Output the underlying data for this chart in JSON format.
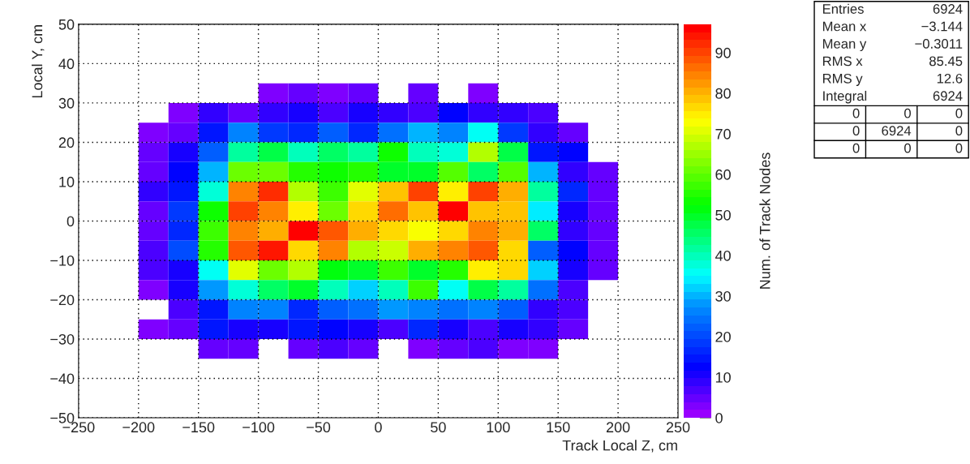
{
  "chart_data": {
    "type": "heatmap",
    "xlabel": "Track Local Z, cm",
    "ylabel": "Local Y, cm",
    "clabel": "Num. of Track Nodes",
    "x": [
      -187.5,
      -162.5,
      -137.5,
      -112.5,
      -87.5,
      -62.5,
      -37.5,
      -12.5,
      12.5,
      37.5,
      62.5,
      87.5,
      112.5,
      137.5,
      162.5,
      187.5
    ],
    "y": [
      32.5,
      27.5,
      22.5,
      17.5,
      12.5,
      7.5,
      2.5,
      -2.5,
      -7.5,
      -12.5,
      -17.5,
      -22.5,
      -27.5,
      -32.5
    ],
    "cells": [
      [
        null,
        null,
        null,
        null,
        2,
        4,
        2,
        4,
        null,
        4,
        null,
        2,
        null,
        null,
        null,
        null
      ],
      [
        null,
        2,
        8,
        5,
        9,
        11,
        6,
        11,
        8,
        6,
        12,
        9,
        8,
        6,
        null,
        null
      ],
      [
        2,
        5,
        14,
        26,
        18,
        16,
        22,
        16,
        24,
        31,
        26,
        35,
        18,
        9,
        5,
        null
      ],
      [
        5,
        10,
        22,
        42,
        47,
        40,
        45,
        42,
        53,
        39,
        38,
        67,
        48,
        15,
        12,
        null
      ],
      [
        5,
        12,
        31,
        62,
        61,
        55,
        53,
        55,
        50,
        49,
        60,
        45,
        60,
        31,
        8,
        4
      ],
      [
        8,
        15,
        38,
        84,
        92,
        67,
        57,
        71,
        79,
        91,
        74,
        90,
        81,
        41,
        16,
        4
      ],
      [
        5,
        18,
        53,
        90,
        84,
        74,
        62,
        76,
        86,
        79,
        97,
        79,
        79,
        33,
        10,
        4
      ],
      [
        5,
        16,
        58,
        84,
        81,
        97,
        88,
        81,
        77,
        72,
        77,
        84,
        81,
        45,
        8,
        4
      ],
      [
        7,
        21,
        55,
        88,
        95,
        76,
        84,
        67,
        69,
        80,
        84,
        88,
        76,
        22,
        12,
        4
      ],
      [
        6,
        11,
        35,
        71,
        62,
        67,
        51,
        49,
        58,
        49,
        55,
        74,
        76,
        32,
        11,
        4
      ],
      [
        3,
        11,
        29,
        37,
        45,
        49,
        39,
        32,
        40,
        58,
        35,
        48,
        41,
        24,
        7,
        null
      ],
      [
        null,
        7,
        14,
        27,
        27,
        16,
        22,
        24,
        29,
        27,
        24,
        27,
        22,
        9,
        7,
        null
      ],
      [
        3,
        5,
        14,
        11,
        10,
        14,
        12,
        11,
        7,
        16,
        10,
        7,
        11,
        8,
        4,
        null
      ],
      [
        null,
        null,
        4,
        4,
        null,
        4,
        7,
        4,
        null,
        3,
        4,
        7,
        3,
        3,
        null,
        null
      ]
    ],
    "xlim": [
      -250,
      250
    ],
    "xticks": [
      -250,
      -200,
      -150,
      -100,
      -50,
      0,
      50,
      100,
      150,
      200,
      250
    ],
    "ylim": [
      -50,
      50
    ],
    "yticks": [
      -50,
      -40,
      -30,
      -20,
      -10,
      0,
      10,
      20,
      30,
      40,
      50
    ],
    "clim": [
      0,
      97
    ],
    "cticks": [
      0,
      10,
      20,
      30,
      40,
      50,
      60,
      70,
      80,
      90
    ],
    "grid": true,
    "annotations": [
      "Entries\t6924",
      "Mean x\t−3.144",
      "Mean y\t−0.3011",
      "RMS x\t85.45",
      "RMS y\t12.6",
      "Integral\t6924",
      "0\t0\t0",
      "0\t6924\t0",
      "0\t0\t0"
    ]
  }
}
